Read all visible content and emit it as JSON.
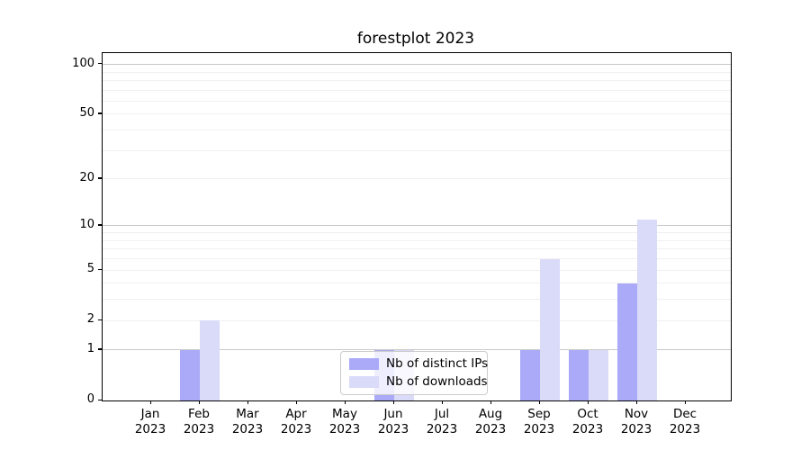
{
  "figure": {
    "background": "#ffffff",
    "spine_color": "#000000"
  },
  "chart_data": {
    "type": "bar",
    "title": "forestplot 2023",
    "xlabel": "",
    "ylabel": "",
    "categories": [
      {
        "month": "Jan",
        "year": "2023"
      },
      {
        "month": "Feb",
        "year": "2023"
      },
      {
        "month": "Mar",
        "year": "2023"
      },
      {
        "month": "Apr",
        "year": "2023"
      },
      {
        "month": "May",
        "year": "2023"
      },
      {
        "month": "Jun",
        "year": "2023"
      },
      {
        "month": "Jul",
        "year": "2023"
      },
      {
        "month": "Aug",
        "year": "2023"
      },
      {
        "month": "Sep",
        "year": "2023"
      },
      {
        "month": "Oct",
        "year": "2023"
      },
      {
        "month": "Nov",
        "year": "2023"
      },
      {
        "month": "Dec",
        "year": "2023"
      }
    ],
    "series": [
      {
        "name": "Nb of distinct IPs",
        "color": "#aaaaf8",
        "values": [
          0,
          1,
          0,
          0,
          0,
          1,
          0,
          0,
          1,
          1,
          4,
          0
        ]
      },
      {
        "name": "Nb of downloads",
        "color": "#dadaf9",
        "values": [
          0,
          2,
          0,
          0,
          0,
          1,
          0,
          0,
          6,
          1,
          11,
          0
        ]
      }
    ],
    "y_axis": {
      "scale": "log1p",
      "range": [
        0,
        117
      ],
      "tick_labels": [
        0,
        1,
        2,
        5,
        10,
        20,
        50,
        100
      ],
      "major_gridlines": [
        1,
        10,
        100
      ],
      "minor_gridlines": [
        2,
        3,
        4,
        5,
        6,
        7,
        8,
        9,
        20,
        30,
        40,
        50,
        60,
        70,
        80,
        90
      ],
      "major_grid_color": "#c9c9c9",
      "minor_grid_color": "#f0f0f0"
    },
    "legend": {
      "position": "lower center"
    },
    "grid": "on"
  }
}
